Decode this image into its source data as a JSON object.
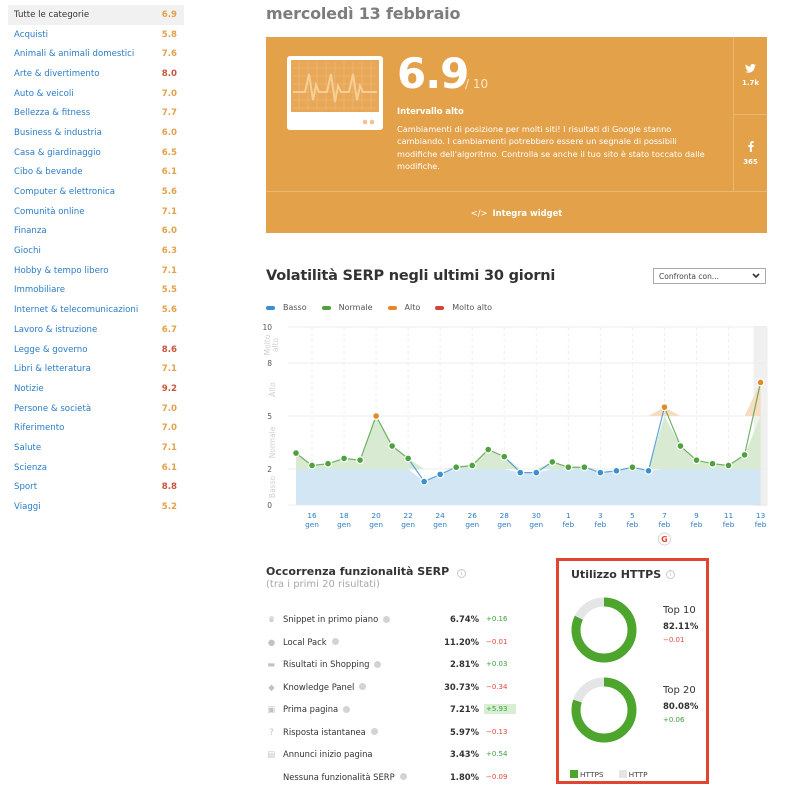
{
  "sidebar": {
    "items": [
      {
        "label": "Tutte le categorie",
        "value": "6.9",
        "color": "#e3a14a",
        "active": true
      },
      {
        "label": "Acquisti",
        "value": "5.8",
        "color": "#e3a14a"
      },
      {
        "label": "Animali & animali domestici",
        "value": "7.6",
        "color": "#e3a14a"
      },
      {
        "label": "Arte & divertimento",
        "value": "8.0",
        "color": "#c8553d"
      },
      {
        "label": "Auto & veicoli",
        "value": "7.0",
        "color": "#e3a14a"
      },
      {
        "label": "Bellezza & fitness",
        "value": "7.7",
        "color": "#e3a14a"
      },
      {
        "label": "Business & industria",
        "value": "6.0",
        "color": "#e3a14a"
      },
      {
        "label": "Casa & giardinaggio",
        "value": "6.5",
        "color": "#e3a14a"
      },
      {
        "label": "Cibo & bevande",
        "value": "6.1",
        "color": "#e3a14a"
      },
      {
        "label": "Computer & elettronica",
        "value": "5.6",
        "color": "#e3a14a"
      },
      {
        "label": "Comunità online",
        "value": "7.1",
        "color": "#e3a14a"
      },
      {
        "label": "Finanza",
        "value": "6.0",
        "color": "#e3a14a"
      },
      {
        "label": "Giochi",
        "value": "6.3",
        "color": "#e3a14a"
      },
      {
        "label": "Hobby & tempo libero",
        "value": "7.1",
        "color": "#e3a14a"
      },
      {
        "label": "Immobiliare",
        "value": "5.5",
        "color": "#e3a14a"
      },
      {
        "label": "Internet & telecomunicazioni",
        "value": "5.6",
        "color": "#e3a14a"
      },
      {
        "label": "Lavoro & istruzione",
        "value": "6.7",
        "color": "#e3a14a"
      },
      {
        "label": "Legge & governo",
        "value": "8.6",
        "color": "#c8553d"
      },
      {
        "label": "Libri & letteratura",
        "value": "7.1",
        "color": "#e3a14a"
      },
      {
        "label": "Notizie",
        "value": "9.2",
        "color": "#c8553d"
      },
      {
        "label": "Persone & società",
        "value": "7.0",
        "color": "#e3a14a"
      },
      {
        "label": "Riferimento",
        "value": "7.0",
        "color": "#e3a14a"
      },
      {
        "label": "Salute",
        "value": "7.1",
        "color": "#e3a14a"
      },
      {
        "label": "Scienza",
        "value": "6.1",
        "color": "#e3a14a"
      },
      {
        "label": "Sport",
        "value": "8.8",
        "color": "#c8553d"
      },
      {
        "label": "Viaggi",
        "value": "5.2",
        "color": "#e3a14a"
      }
    ]
  },
  "header": {
    "date": "mercoledì 13 febbraio"
  },
  "score_card": {
    "score": "6.9",
    "out_of": "/ 10",
    "range_label": "Intervallo alto",
    "description": "Cambiamenti di posizione per molti siti! I risultati di Google stanno cambiando. I cambiamenti potrebbero essere un segnale di possibili modifiche dell'algoritmo. Controlla se anche il tuo sito è stato toccato dalle modifiche.",
    "widget_label": "Integra widget",
    "widget_icon": "</>",
    "background": "#e3a14a",
    "social": [
      {
        "icon": "twitter-icon",
        "count": "1.7k"
      },
      {
        "icon": "facebook-icon",
        "count": "365"
      }
    ]
  },
  "volatility": {
    "title": "Volatilità SERP negli ultimi 30 giorni",
    "compare_placeholder": "Confronta con...",
    "legend": [
      {
        "label": "Basso",
        "color": "#3a8fd0"
      },
      {
        "label": "Normale",
        "color": "#4ea13f"
      },
      {
        "label": "Alto",
        "color": "#e3892a"
      },
      {
        "label": "Molto alto",
        "color": "#d0443a"
      }
    ],
    "bands": [
      "Basso",
      "Normale",
      "Alto",
      "Molto alto"
    ]
  },
  "chart_data": {
    "type": "line",
    "title": "Volatilità SERP negli ultimi 30 giorni",
    "xlabel": "",
    "ylabel": "",
    "ylim": [
      0,
      10
    ],
    "y_ticks": [
      0,
      2,
      5,
      8,
      10
    ],
    "y_bands": [
      {
        "label": "Basso",
        "from": 0,
        "to": 2
      },
      {
        "label": "Normale",
        "from": 2,
        "to": 5
      },
      {
        "label": "Alto",
        "from": 5,
        "to": 8
      },
      {
        "label": "Molto alto",
        "from": 8,
        "to": 10
      }
    ],
    "x_tick_labels": [
      [
        "16",
        "gen"
      ],
      [
        "18",
        "gen"
      ],
      [
        "20",
        "gen"
      ],
      [
        "22",
        "gen"
      ],
      [
        "24",
        "gen"
      ],
      [
        "26",
        "gen"
      ],
      [
        "28",
        "gen"
      ],
      [
        "30",
        "gen"
      ],
      [
        "1",
        "feb"
      ],
      [
        "3",
        "feb"
      ],
      [
        "5",
        "feb"
      ],
      [
        "7",
        "feb"
      ],
      [
        "9",
        "feb"
      ],
      [
        "11",
        "feb"
      ],
      [
        "13",
        "feb"
      ]
    ],
    "x": [
      "15 gen",
      "16 gen",
      "17 gen",
      "18 gen",
      "19 gen",
      "20 gen",
      "21 gen",
      "22 gen",
      "23 gen",
      "24 gen",
      "25 gen",
      "26 gen",
      "27 gen",
      "28 gen",
      "29 gen",
      "30 gen",
      "31 gen",
      "1 feb",
      "2 feb",
      "3 feb",
      "4 feb",
      "5 feb",
      "6 feb",
      "7 feb",
      "8 feb",
      "9 feb",
      "10 feb",
      "11 feb",
      "12 feb",
      "13 feb"
    ],
    "series": [
      {
        "name": "Volatilità",
        "values": [
          2.9,
          2.2,
          2.3,
          2.6,
          2.5,
          5.0,
          3.3,
          2.6,
          1.3,
          1.7,
          2.1,
          2.2,
          3.1,
          2.7,
          1.8,
          1.8,
          2.4,
          2.1,
          2.1,
          1.8,
          1.9,
          2.1,
          1.9,
          5.5,
          3.3,
          2.5,
          2.3,
          2.2,
          2.8,
          6.9
        ]
      }
    ],
    "annotations": [
      {
        "x": "7 feb",
        "label": "google-update-icon"
      }
    ],
    "grid": true,
    "legend_position": "top-left"
  },
  "features": {
    "title": "Occorrenza funzionalità SERP",
    "subtitle": "(tra i primi 20 risultati)",
    "rows": [
      {
        "icon": "crown-icon",
        "glyph": "♛",
        "name": "Snippet in primo piano",
        "pct": "6.74%",
        "delta": "+0.16",
        "sign": "pos"
      },
      {
        "icon": "map-pin-icon",
        "glyph": "●",
        "name": "Local Pack",
        "pct": "11.20%",
        "delta": "−0.01",
        "sign": "neg"
      },
      {
        "icon": "shopping-cart-icon",
        "glyph": "▬",
        "name": "Risultati in Shopping",
        "pct": "2.81%",
        "delta": "+0.03",
        "sign": "pos"
      },
      {
        "icon": "graduation-cap-icon",
        "glyph": "◆",
        "name": "Knowledge Panel",
        "pct": "30.73%",
        "delta": "−0.34",
        "sign": "neg"
      },
      {
        "icon": "front-page-icon",
        "glyph": "▣",
        "name": "Prima pagina",
        "pct": "7.21%",
        "delta": "+5.93",
        "sign": "pos",
        "highlight": true
      },
      {
        "icon": "question-icon",
        "glyph": "?",
        "name": "Risposta istantanea",
        "pct": "5.97%",
        "delta": "−0.13",
        "sign": "neg"
      },
      {
        "icon": "ad-icon",
        "glyph": "▤",
        "name": "Annunci inizio pagina",
        "pct": "3.43%",
        "delta": "+0.54",
        "sign": "pos"
      },
      {
        "icon": "",
        "glyph": "",
        "name": "Nessuna funzionalità SERP",
        "pct": "1.80%",
        "delta": "−0.09",
        "sign": "neg"
      }
    ]
  },
  "https": {
    "title": "Utilizzo HTTPS",
    "items": [
      {
        "label": "Top 10",
        "pct": "82.11%",
        "value": 82.11,
        "delta": "−0.01",
        "sign": "neg"
      },
      {
        "label": "Top 20",
        "pct": "80.08%",
        "value": 80.08,
        "delta": "+0.06",
        "sign": "pos"
      }
    ],
    "legend": [
      {
        "label": "HTTPS",
        "color": "#4ea52e"
      },
      {
        "label": "HTTP",
        "color": "#e3e5e6"
      }
    ]
  }
}
